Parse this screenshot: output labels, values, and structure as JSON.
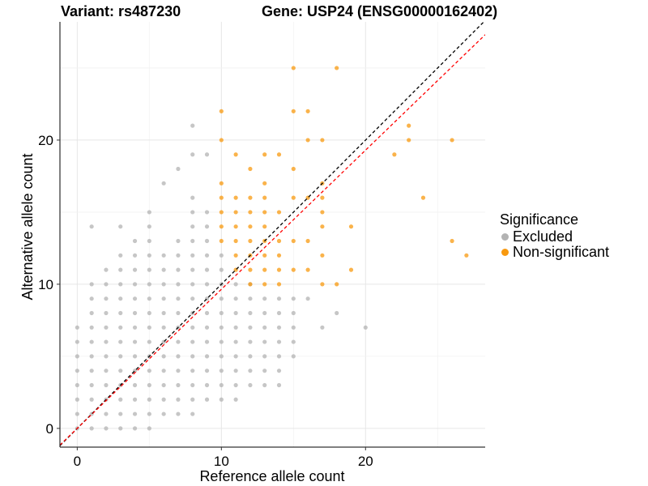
{
  "titles": {
    "left": "Variant: rs487230",
    "right": "Gene: USP24 (ENSG00000162402)"
  },
  "legend": {
    "title": "Significance",
    "items": [
      {
        "label": "Excluded",
        "color": "#b3b3b3"
      },
      {
        "label": "Non-significant",
        "color": "#f8990f"
      }
    ]
  },
  "chart_data": {
    "type": "scatter",
    "xlabel": "Reference allele count",
    "ylabel": "Alternative allele count",
    "xlim": [
      -1.2,
      28.3
    ],
    "ylim": [
      -1.3,
      28.2
    ],
    "x_ticks": [
      0,
      10,
      20
    ],
    "y_ticks": [
      0,
      10,
      20
    ],
    "grid": true,
    "legend_position": "right",
    "reference_lines": [
      {
        "name": "identity",
        "color": "#000000",
        "style": "dashed",
        "slope": 1,
        "intercept": 0
      },
      {
        "name": "fit",
        "color": "#ff0000",
        "style": "dashed",
        "slope": 0.965,
        "intercept": 0
      }
    ],
    "series": [
      {
        "name": "Excluded",
        "color": "#b3b3b3",
        "points": [
          [
            0,
            0
          ],
          [
            0,
            1
          ],
          [
            0,
            2
          ],
          [
            0,
            3
          ],
          [
            0,
            4
          ],
          [
            0,
            5
          ],
          [
            0,
            6
          ],
          [
            0,
            7
          ],
          [
            1,
            0
          ],
          [
            1,
            1
          ],
          [
            1,
            2
          ],
          [
            1,
            3
          ],
          [
            1,
            4
          ],
          [
            1,
            5
          ],
          [
            1,
            6
          ],
          [
            1,
            7
          ],
          [
            1,
            8
          ],
          [
            1,
            9
          ],
          [
            1,
            10
          ],
          [
            1,
            14
          ],
          [
            2,
            0
          ],
          [
            2,
            1
          ],
          [
            2,
            2
          ],
          [
            2,
            3
          ],
          [
            2,
            4
          ],
          [
            2,
            5
          ],
          [
            2,
            6
          ],
          [
            2,
            7
          ],
          [
            2,
            8
          ],
          [
            2,
            9
          ],
          [
            2,
            10
          ],
          [
            2,
            11
          ],
          [
            3,
            0
          ],
          [
            3,
            1
          ],
          [
            3,
            2
          ],
          [
            3,
            3
          ],
          [
            3,
            4
          ],
          [
            3,
            5
          ],
          [
            3,
            6
          ],
          [
            3,
            7
          ],
          [
            3,
            8
          ],
          [
            3,
            9
          ],
          [
            3,
            10
          ],
          [
            3,
            11
          ],
          [
            3,
            12
          ],
          [
            3,
            14
          ],
          [
            4,
            0
          ],
          [
            4,
            1
          ],
          [
            4,
            2
          ],
          [
            4,
            3
          ],
          [
            4,
            4
          ],
          [
            4,
            5
          ],
          [
            4,
            6
          ],
          [
            4,
            7
          ],
          [
            4,
            8
          ],
          [
            4,
            9
          ],
          [
            4,
            10
          ],
          [
            4,
            11
          ],
          [
            4,
            12
          ],
          [
            4,
            13
          ],
          [
            5,
            0
          ],
          [
            5,
            1
          ],
          [
            5,
            2
          ],
          [
            5,
            3
          ],
          [
            5,
            4
          ],
          [
            5,
            5
          ],
          [
            5,
            6
          ],
          [
            5,
            7
          ],
          [
            5,
            8
          ],
          [
            5,
            9
          ],
          [
            5,
            10
          ],
          [
            5,
            11
          ],
          [
            5,
            12
          ],
          [
            5,
            13
          ],
          [
            5,
            14
          ],
          [
            5,
            15
          ],
          [
            6,
            1
          ],
          [
            6,
            2
          ],
          [
            6,
            3
          ],
          [
            6,
            4
          ],
          [
            6,
            5
          ],
          [
            6,
            6
          ],
          [
            6,
            7
          ],
          [
            6,
            8
          ],
          [
            6,
            9
          ],
          [
            6,
            10
          ],
          [
            6,
            11
          ],
          [
            6,
            12
          ],
          [
            6,
            17
          ],
          [
            7,
            1
          ],
          [
            7,
            2
          ],
          [
            7,
            3
          ],
          [
            7,
            4
          ],
          [
            7,
            5
          ],
          [
            7,
            6
          ],
          [
            7,
            7
          ],
          [
            7,
            8
          ],
          [
            7,
            9
          ],
          [
            7,
            10
          ],
          [
            7,
            11
          ],
          [
            7,
            12
          ],
          [
            7,
            13
          ],
          [
            7,
            18
          ],
          [
            8,
            1
          ],
          [
            8,
            2
          ],
          [
            8,
            3
          ],
          [
            8,
            4
          ],
          [
            8,
            5
          ],
          [
            8,
            6
          ],
          [
            8,
            7
          ],
          [
            8,
            8
          ],
          [
            8,
            9
          ],
          [
            8,
            10
          ],
          [
            8,
            11
          ],
          [
            8,
            12
          ],
          [
            8,
            13
          ],
          [
            8,
            14
          ],
          [
            8,
            15
          ],
          [
            8,
            16
          ],
          [
            8,
            19
          ],
          [
            8,
            21
          ],
          [
            9,
            2
          ],
          [
            9,
            3
          ],
          [
            9,
            4
          ],
          [
            9,
            5
          ],
          [
            9,
            6
          ],
          [
            9,
            7
          ],
          [
            9,
            8
          ],
          [
            9,
            9
          ],
          [
            9,
            10
          ],
          [
            9,
            11
          ],
          [
            9,
            12
          ],
          [
            9,
            13
          ],
          [
            9,
            14
          ],
          [
            9,
            15
          ],
          [
            9,
            19
          ],
          [
            10,
            2
          ],
          [
            10,
            3
          ],
          [
            10,
            4
          ],
          [
            10,
            5
          ],
          [
            10,
            6
          ],
          [
            10,
            7
          ],
          [
            10,
            8
          ],
          [
            10,
            9
          ],
          [
            10,
            10
          ],
          [
            10,
            11
          ],
          [
            10,
            12
          ],
          [
            11,
            2
          ],
          [
            11,
            3
          ],
          [
            11,
            4
          ],
          [
            11,
            5
          ],
          [
            11,
            6
          ],
          [
            11,
            7
          ],
          [
            11,
            8
          ],
          [
            11,
            9
          ],
          [
            11,
            10
          ],
          [
            12,
            3
          ],
          [
            12,
            4
          ],
          [
            12,
            5
          ],
          [
            12,
            6
          ],
          [
            12,
            7
          ],
          [
            12,
            8
          ],
          [
            12,
            9
          ],
          [
            12,
            10
          ],
          [
            13,
            3
          ],
          [
            13,
            4
          ],
          [
            13,
            5
          ],
          [
            13,
            6
          ],
          [
            13,
            7
          ],
          [
            13,
            8
          ],
          [
            13,
            9
          ],
          [
            14,
            3
          ],
          [
            14,
            4
          ],
          [
            14,
            5
          ],
          [
            14,
            6
          ],
          [
            14,
            7
          ],
          [
            14,
            8
          ],
          [
            14,
            9
          ],
          [
            15,
            5
          ],
          [
            15,
            6
          ],
          [
            15,
            7
          ],
          [
            15,
            8
          ],
          [
            15,
            9
          ],
          [
            16,
            9
          ],
          [
            17,
            7
          ],
          [
            18,
            8
          ],
          [
            20,
            7
          ]
        ]
      },
      {
        "name": "Non-significant",
        "color": "#f8990f",
        "points": [
          [
            10,
            13
          ],
          [
            10,
            14
          ],
          [
            10,
            15
          ],
          [
            10,
            16
          ],
          [
            10,
            17
          ],
          [
            10,
            20
          ],
          [
            10,
            22
          ],
          [
            11,
            11
          ],
          [
            11,
            12
          ],
          [
            11,
            13
          ],
          [
            11,
            14
          ],
          [
            11,
            15
          ],
          [
            11,
            16
          ],
          [
            11,
            19
          ],
          [
            12,
            10
          ],
          [
            12,
            11
          ],
          [
            12,
            12
          ],
          [
            12,
            13
          ],
          [
            12,
            14
          ],
          [
            12,
            15
          ],
          [
            12,
            16
          ],
          [
            12,
            18
          ],
          [
            13,
            10
          ],
          [
            13,
            11
          ],
          [
            13,
            12
          ],
          [
            13,
            13
          ],
          [
            13,
            14
          ],
          [
            13,
            15
          ],
          [
            13,
            16
          ],
          [
            13,
            17
          ],
          [
            13,
            19
          ],
          [
            14,
            10
          ],
          [
            14,
            11
          ],
          [
            14,
            12
          ],
          [
            14,
            13
          ],
          [
            14,
            15
          ],
          [
            14,
            19
          ],
          [
            15,
            11
          ],
          [
            15,
            13
          ],
          [
            15,
            16
          ],
          [
            15,
            18
          ],
          [
            15,
            22
          ],
          [
            15,
            25
          ],
          [
            16,
            11
          ],
          [
            16,
            13
          ],
          [
            16,
            16
          ],
          [
            16,
            20
          ],
          [
            16,
            22
          ],
          [
            17,
            10
          ],
          [
            17,
            12
          ],
          [
            17,
            14
          ],
          [
            17,
            15
          ],
          [
            17,
            16
          ],
          [
            17,
            17
          ],
          [
            17,
            20
          ],
          [
            18,
            10
          ],
          [
            18,
            25
          ],
          [
            19,
            11
          ],
          [
            19,
            14
          ],
          [
            22,
            19
          ],
          [
            23,
            20
          ],
          [
            23,
            21
          ],
          [
            24,
            16
          ],
          [
            26,
            13
          ],
          [
            26,
            20
          ],
          [
            27,
            12
          ]
        ]
      }
    ]
  }
}
